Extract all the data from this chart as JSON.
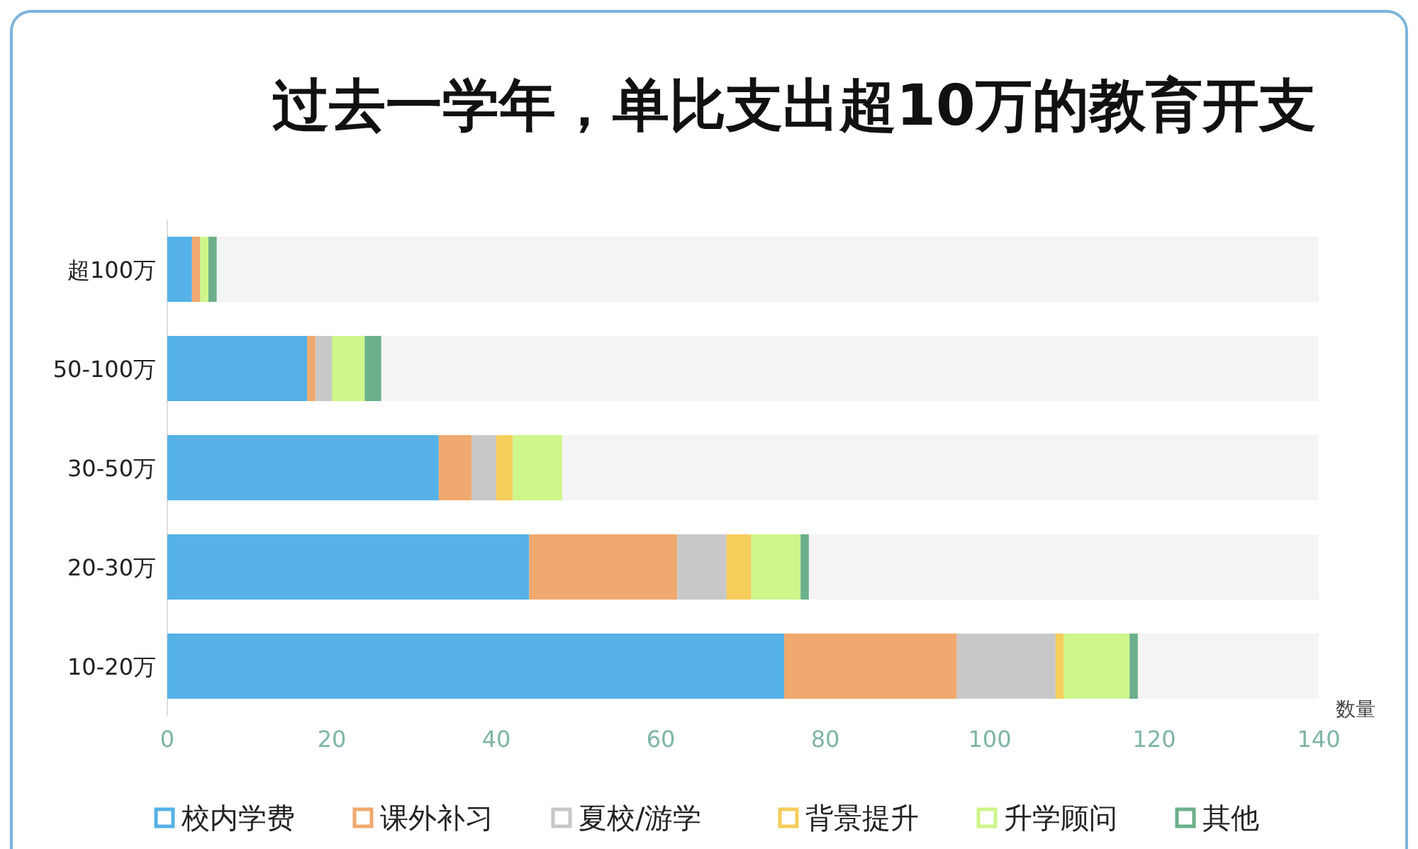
{
  "chart_data": {
    "type": "bar",
    "orientation": "horizontal",
    "stacked": true,
    "title": "过去一学年，单比支出超10万的教育开支",
    "xlabel": "数量",
    "categories": [
      "超100万",
      "50-100万",
      "30-50万",
      "20-30万",
      "10-20万"
    ],
    "series": [
      {
        "name": "校内学费",
        "color": "#55b1e6",
        "values": [
          3,
          17,
          33,
          44,
          75
        ]
      },
      {
        "name": "课外补习",
        "color": "#f0a96e",
        "values": [
          1,
          1,
          4,
          18,
          21
        ]
      },
      {
        "name": "夏校/游学",
        "color": "#c8c8c8",
        "values": [
          0,
          2,
          3,
          6,
          12
        ]
      },
      {
        "name": "背景提升",
        "color": "#f5cd5a",
        "values": [
          0,
          0,
          2,
          3,
          1
        ]
      },
      {
        "name": "升学顾问",
        "color": "#cef68b",
        "values": [
          1,
          4,
          6,
          6,
          8
        ]
      },
      {
        "name": "其他",
        "color": "#6bb08a",
        "values": [
          1,
          2,
          0,
          1,
          1
        ]
      }
    ],
    "xlim": [
      0,
      140
    ],
    "xticks": [
      0,
      20,
      40,
      60,
      80,
      100,
      120,
      140
    ],
    "grid": false,
    "legend": "bottom"
  }
}
